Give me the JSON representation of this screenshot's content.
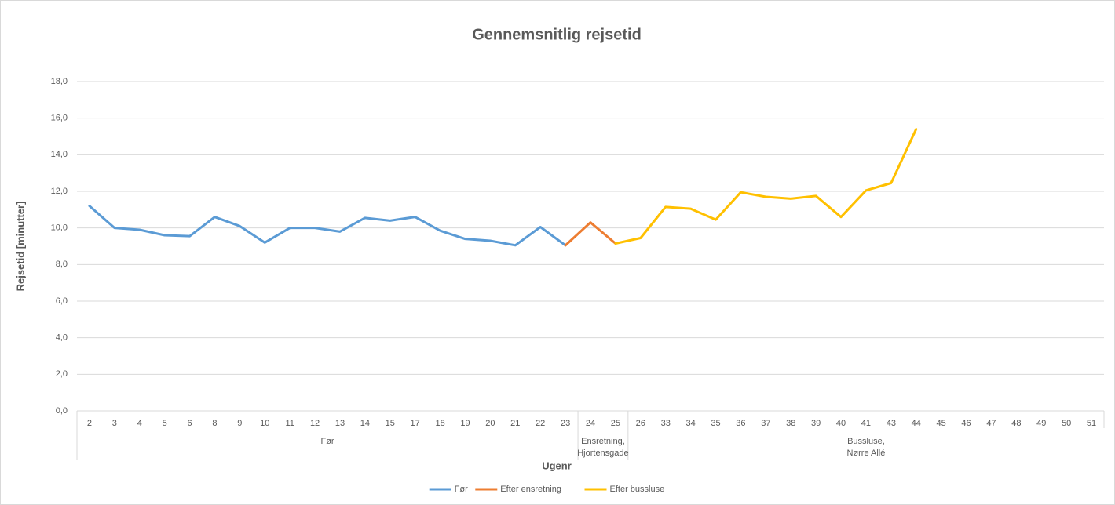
{
  "chart_data": {
    "type": "line",
    "title": "Gennemsnitlig rejsetid",
    "x_label": "Ugenr",
    "y_label": "Rejsetid [minutter]",
    "category_groups": [
      {
        "label": "Før",
        "categories": [
          "2",
          "3",
          "4",
          "5",
          "6",
          "8",
          "9",
          "10",
          "11",
          "12",
          "13",
          "14",
          "15",
          "17",
          "18",
          "19",
          "20",
          "21",
          "22",
          "23"
        ]
      },
      {
        "label": "Ensretning,\nHjortensgade",
        "categories": [
          "24",
          "25"
        ]
      },
      {
        "label": "Bussluse,\nNørre Allé",
        "categories": [
          "26",
          "33",
          "34",
          "35",
          "36",
          "37",
          "38",
          "39",
          "40",
          "41",
          "43",
          "44",
          "45",
          "46",
          "47",
          "48",
          "49",
          "50",
          "51"
        ]
      }
    ],
    "series": [
      {
        "name": "Før",
        "color": "#5b9bd5",
        "values": [
          11.2,
          10.0,
          9.9,
          9.6,
          9.55,
          10.6,
          10.1,
          9.2,
          10.0,
          10.0,
          9.8,
          10.55,
          10.4,
          10.6,
          9.85,
          9.4,
          9.3,
          9.05,
          10.05,
          9.05,
          null,
          null,
          null,
          null,
          null,
          null,
          null,
          null,
          null,
          null,
          null,
          null,
          null,
          null,
          null,
          null,
          null,
          null,
          null,
          null,
          null
        ]
      },
      {
        "name": "Efter ensretning",
        "color": "#ed7d31",
        "values": [
          null,
          null,
          null,
          null,
          null,
          null,
          null,
          null,
          null,
          null,
          null,
          null,
          null,
          null,
          null,
          null,
          null,
          null,
          null,
          9.05,
          10.3,
          9.15,
          null,
          null,
          null,
          null,
          null,
          null,
          null,
          null,
          null,
          null,
          null,
          null,
          null,
          null,
          null,
          null,
          null,
          null,
          null
        ]
      },
      {
        "name": "Efter bussluse",
        "color": "#ffc000",
        "values": [
          null,
          null,
          null,
          null,
          null,
          null,
          null,
          null,
          null,
          null,
          null,
          null,
          null,
          null,
          null,
          null,
          null,
          null,
          null,
          null,
          null,
          9.15,
          9.45,
          11.15,
          11.05,
          10.45,
          11.95,
          11.7,
          11.6,
          11.75,
          10.6,
          12.05,
          12.45,
          15.4,
          null,
          null,
          null,
          null,
          null,
          null,
          null
        ]
      }
    ],
    "ylim": [
      0,
      18
    ],
    "yticks": [
      {
        "value": 0,
        "label": "0,0"
      },
      {
        "value": 2,
        "label": "2,0"
      },
      {
        "value": 4,
        "label": "4,0"
      },
      {
        "value": 6,
        "label": "6,0"
      },
      {
        "value": 8,
        "label": "8,0"
      },
      {
        "value": 10,
        "label": "10,0"
      },
      {
        "value": 12,
        "label": "12,0"
      },
      {
        "value": 14,
        "label": "14,0"
      },
      {
        "value": 16,
        "label": "16,0"
      },
      {
        "value": 18,
        "label": "18,0"
      }
    ],
    "grid": true,
    "legend": "bottom"
  }
}
